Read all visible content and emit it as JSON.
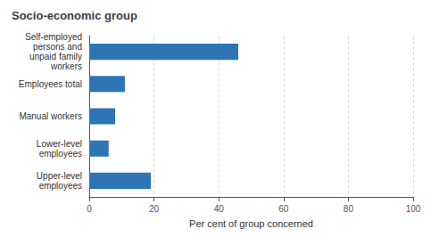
{
  "chart_data": {
    "type": "bar",
    "orientation": "horizontal",
    "title": "Socio-economic group",
    "xlabel": "Per cent of group concerned",
    "categories": [
      "Upper-level\nemployees",
      "Lower-level\nemployees",
      "Manual workers",
      "Employees total",
      "Self-employed\npersons and\nunpaid family\nworkers"
    ],
    "values": [
      19,
      6,
      8,
      11,
      46
    ],
    "color": "#2e75b6",
    "xlim": [
      0,
      100
    ],
    "xticks": [
      0,
      20,
      40,
      60,
      80,
      100
    ],
    "grid": true
  }
}
